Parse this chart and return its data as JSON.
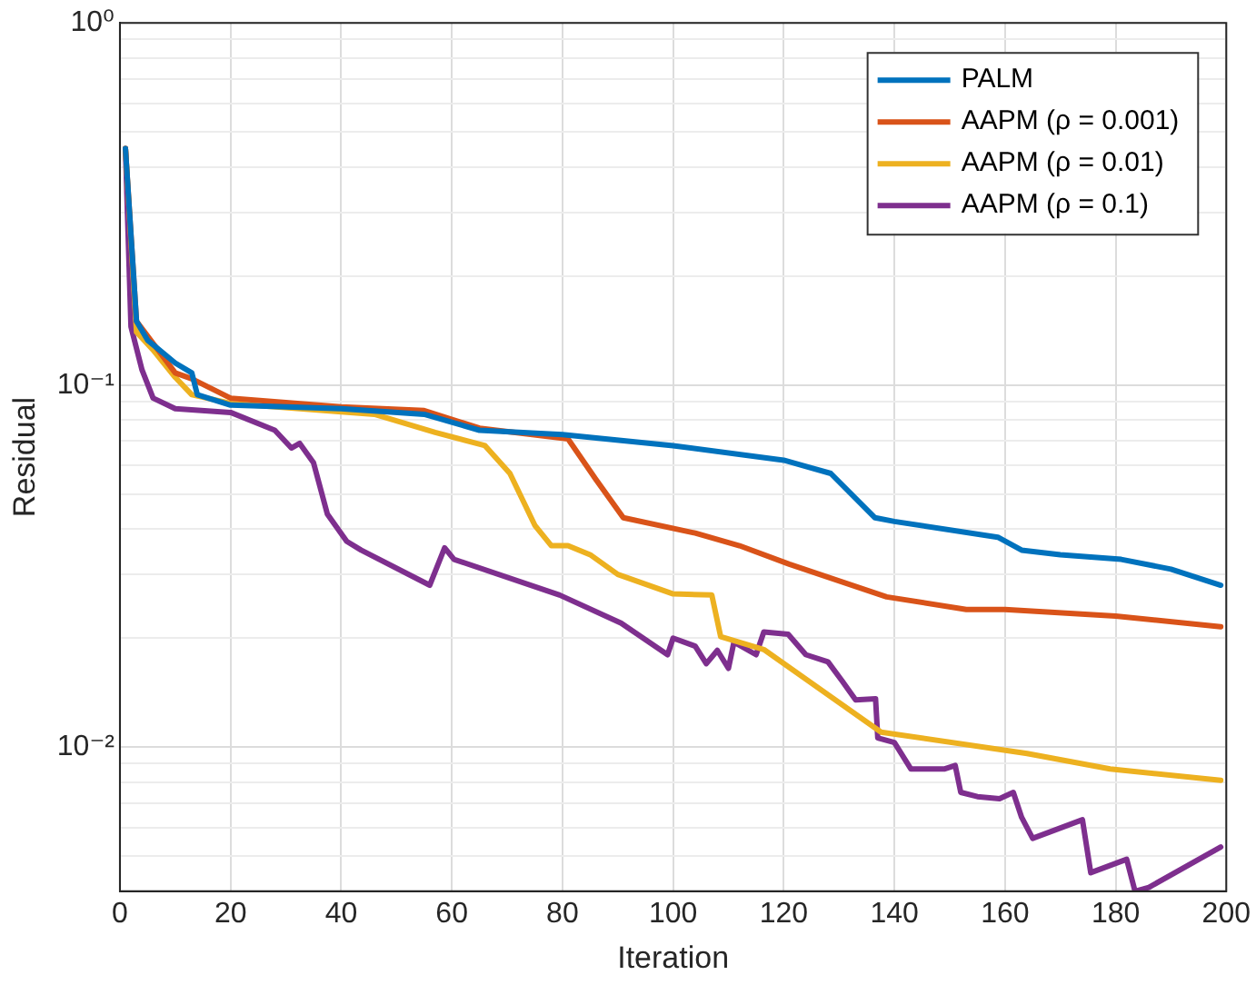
{
  "chart_data": {
    "type": "line",
    "xlabel": "Iteration",
    "ylabel": "Residual",
    "log": "y",
    "grid": true,
    "legend": "top right",
    "line_style": "solid",
    "marker": "none",
    "xlim": [
      0,
      200
    ],
    "xticks": [
      0,
      20,
      40,
      60,
      80,
      100,
      120,
      140,
      160,
      180,
      200
    ],
    "ylim": [
      0.004,
      1
    ],
    "yticks": [
      {
        "value": 0.004,
        "label": null
      },
      {
        "value": 0.005,
        "label": null
      },
      {
        "value": 0.006,
        "label": null
      },
      {
        "value": 0.007,
        "label": null
      },
      {
        "value": 0.008,
        "label": null
      },
      {
        "value": 0.009,
        "label": null
      },
      {
        "value": 0.01,
        "label": "10⁻²"
      },
      {
        "value": 0.02,
        "label": null
      },
      {
        "value": 0.03,
        "label": null
      },
      {
        "value": 0.04,
        "label": null
      },
      {
        "value": 0.05,
        "label": null
      },
      {
        "value": 0.06,
        "label": null
      },
      {
        "value": 0.07,
        "label": null
      },
      {
        "value": 0.08,
        "label": null
      },
      {
        "value": 0.09,
        "label": null
      },
      {
        "value": 0.1,
        "label": "10⁻¹"
      },
      {
        "value": 0.2,
        "label": null
      },
      {
        "value": 0.3,
        "label": null
      },
      {
        "value": 0.4,
        "label": null
      },
      {
        "value": 0.5,
        "label": null
      },
      {
        "value": 0.6,
        "label": null
      },
      {
        "value": 0.7,
        "label": null
      },
      {
        "value": 0.8,
        "label": null
      },
      {
        "value": 0.9,
        "label": null
      },
      {
        "value": 1,
        "label": "10⁰"
      }
    ],
    "series": [
      {
        "name": "PALM",
        "color": "#0072bd",
        "x": [
          1,
          3,
          5,
          10,
          13,
          14,
          20,
          40,
          55,
          65,
          80,
          100,
          120,
          128.5,
          136.5,
          140,
          158.7,
          163,
          170,
          181,
          190,
          199
        ],
        "values": [
          0.45,
          0.15,
          0.133,
          0.115,
          0.108,
          0.094,
          0.088,
          0.086,
          0.083,
          0.075,
          0.073,
          0.068,
          0.062,
          0.057,
          0.043,
          0.042,
          0.038,
          0.035,
          0.034,
          0.033,
          0.031,
          0.028
        ]
      },
      {
        "name": "AAPM (ρ = 0.001)",
        "color": "#d95319",
        "x": [
          1,
          3,
          10,
          13,
          20,
          40,
          55,
          65,
          81,
          86,
          91,
          104,
          112,
          121,
          138.6,
          153,
          160,
          180,
          199
        ],
        "values": [
          0.45,
          0.15,
          0.108,
          0.104,
          0.092,
          0.087,
          0.085,
          0.076,
          0.071,
          0.055,
          0.043,
          0.039,
          0.036,
          0.032,
          0.026,
          0.024,
          0.024,
          0.023,
          0.0215
        ]
      },
      {
        "name": "AAPM (ρ = 0.01)",
        "color": "#edb120",
        "x": [
          1,
          3,
          6,
          10,
          13,
          20,
          46,
          57,
          66,
          70.5,
          75,
          78,
          81,
          85,
          90,
          100,
          107,
          108.6,
          116.4,
          137.6,
          164,
          179,
          199
        ],
        "values": [
          0.45,
          0.14,
          0.125,
          0.105,
          0.094,
          0.089,
          0.083,
          0.074,
          0.068,
          0.057,
          0.041,
          0.036,
          0.036,
          0.034,
          0.03,
          0.0265,
          0.0263,
          0.0202,
          0.0186,
          0.011,
          0.0096,
          0.0087,
          0.0081
        ]
      },
      {
        "name": "AAPM (ρ = 0.1)",
        "color": "#7e2f8e",
        "x": [
          1,
          2,
          4,
          6,
          10,
          20,
          28,
          31,
          32.5,
          35,
          37.5,
          41,
          43.6,
          56,
          58.7,
          60.4,
          79.5,
          90.6,
          99,
          100,
          104,
          106,
          108,
          110,
          111,
          115,
          116.4,
          120.8,
          124,
          128,
          130.6,
          133,
          136.6,
          137,
          140,
          143,
          149,
          151,
          152,
          155,
          159,
          161.5,
          163,
          165,
          174,
          175.5,
          182,
          183.5,
          186,
          199
        ],
        "values": [
          0.45,
          0.145,
          0.11,
          0.092,
          0.086,
          0.084,
          0.075,
          0.067,
          0.069,
          0.061,
          0.044,
          0.037,
          0.035,
          0.028,
          0.0355,
          0.033,
          0.0263,
          0.022,
          0.018,
          0.02,
          0.019,
          0.017,
          0.0185,
          0.0165,
          0.0195,
          0.018,
          0.0208,
          0.0205,
          0.018,
          0.0172,
          0.0152,
          0.0135,
          0.0136,
          0.0106,
          0.0103,
          0.0087,
          0.0087,
          0.0089,
          0.0075,
          0.0073,
          0.0072,
          0.0075,
          0.0064,
          0.0056,
          0.0063,
          0.0045,
          0.0049,
          0.004,
          0.0041,
          0.0053
        ]
      }
    ]
  }
}
